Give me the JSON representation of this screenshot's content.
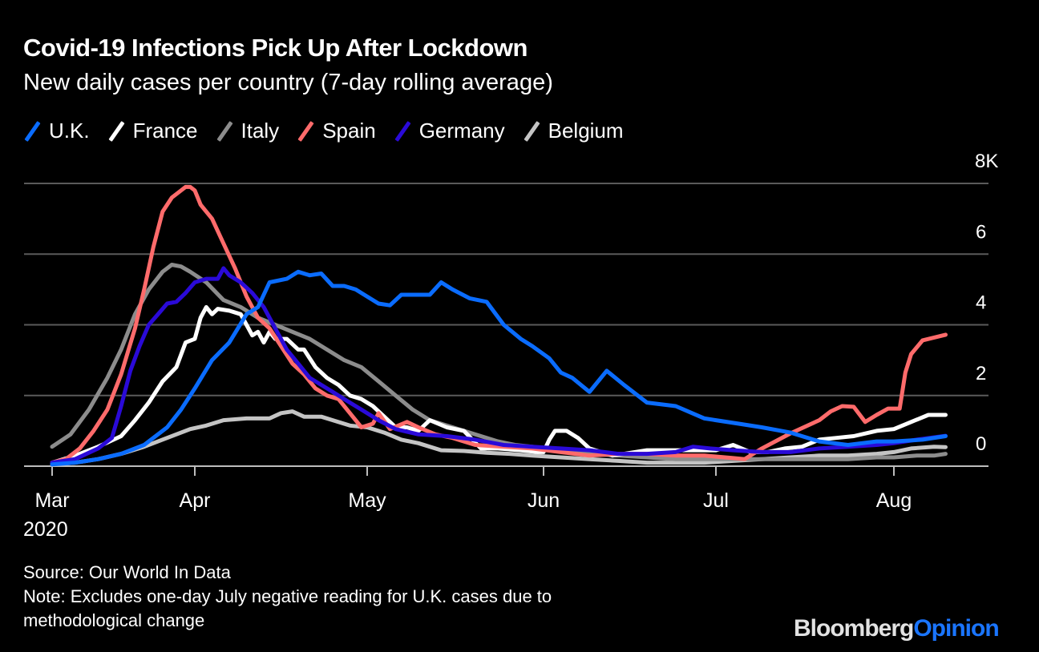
{
  "header": {
    "title": "Covid-19 Infections Pick Up After Lockdown",
    "subtitle": "New daily cases per country (7-day rolling average)"
  },
  "footer": {
    "source": "Source: Our World In Data",
    "note_line1": "Note: Excludes one-day July negative reading for U.K. cases due to",
    "note_line2": "methodological change"
  },
  "logo": {
    "brand": "Bloomberg",
    "section": "Opinion"
  },
  "chart_data": {
    "type": "line",
    "title": "Covid-19 Infections Pick Up After Lockdown",
    "subtitle": "New daily cases per country (7-day rolling average)",
    "xlabel": "",
    "ylabel": "",
    "x_unit": "days since 2020-03-01",
    "xlim": [
      0,
      162
    ],
    "ylim": [
      0,
      8
    ],
    "y_unit": "thousands",
    "y_ticks": [
      0,
      2,
      4,
      6,
      8
    ],
    "y_tick_labels": [
      "0",
      "2",
      "4",
      "6",
      "8K"
    ],
    "x_ticks": [
      0,
      31,
      61,
      92,
      122,
      153
    ],
    "x_tick_labels": [
      "Mar",
      "Apr",
      "May",
      "Jun",
      "Jul",
      "Aug"
    ],
    "x_year_label": "2020",
    "grid": true,
    "legend_position": "top-left",
    "series": [
      {
        "name": "U.K.",
        "color": "#0a6cff",
        "x": [
          0,
          5,
          10,
          15,
          20,
          25,
          28,
          31,
          34,
          37,
          40,
          42,
          44,
          47,
          49,
          51,
          53,
          55,
          57,
          59,
          61,
          63,
          65,
          67,
          69,
          72,
          74,
          76,
          79,
          82,
          85,
          88,
          90,
          93,
          95,
          97,
          100,
          103,
          106,
          110,
          115,
          120,
          122,
          126,
          130,
          135,
          140,
          145,
          150,
          153,
          158,
          162
        ],
        "y": [
          0.05,
          0.1,
          0.2,
          0.35,
          0.6,
          1.1,
          1.6,
          2.2,
          3.0,
          3.5,
          4.3,
          4.5,
          5.2,
          5.3,
          5.5,
          5.4,
          5.45,
          5.1,
          5.1,
          5.0,
          4.8,
          4.6,
          4.55,
          4.85,
          4.85,
          4.85,
          5.2,
          5.0,
          4.75,
          4.65,
          4.0,
          3.6,
          3.4,
          3.05,
          2.65,
          2.5,
          2.1,
          2.7,
          2.3,
          1.8,
          1.7,
          1.35,
          1.3,
          1.2,
          1.1,
          0.95,
          0.7,
          0.6,
          0.7,
          0.7,
          0.75,
          0.85
        ]
      },
      {
        "name": "France",
        "color": "#ffffff",
        "x": [
          0,
          5,
          10,
          15,
          18,
          21,
          24,
          27,
          29,
          31,
          32,
          33,
          34,
          35,
          37,
          39,
          40,
          41,
          42,
          43,
          44,
          45,
          47,
          49,
          50,
          52,
          54,
          56,
          58,
          60,
          62,
          64,
          66,
          68,
          70,
          72,
          75,
          78,
          81,
          84,
          88,
          91,
          92,
          93,
          94,
          96,
          98,
          100,
          104,
          110,
          115,
          120,
          122,
          125,
          128,
          131,
          134,
          137,
          140,
          143,
          146,
          150,
          153,
          156,
          159,
          162
        ],
        "y": [
          0.1,
          0.3,
          0.55,
          0.85,
          1.3,
          1.8,
          2.4,
          2.8,
          3.5,
          3.6,
          4.2,
          4.5,
          4.3,
          4.45,
          4.4,
          4.3,
          4.0,
          3.7,
          3.8,
          3.5,
          3.8,
          3.6,
          3.6,
          3.3,
          3.3,
          2.8,
          2.5,
          2.3,
          2.0,
          1.9,
          1.7,
          1.4,
          1.1,
          1.1,
          1.0,
          1.3,
          1.1,
          1.0,
          0.5,
          0.5,
          0.45,
          0.4,
          0.4,
          0.75,
          1.0,
          1.0,
          0.8,
          0.5,
          0.3,
          0.45,
          0.45,
          0.45,
          0.45,
          0.6,
          0.4,
          0.4,
          0.5,
          0.55,
          0.75,
          0.8,
          0.85,
          1.0,
          1.05,
          1.25,
          1.45,
          1.45
        ]
      },
      {
        "name": "Italy",
        "color": "#8c8c8c",
        "x": [
          0,
          4,
          8,
          12,
          15,
          18,
          21,
          24,
          26,
          28,
          30,
          33,
          36,
          39,
          42,
          45,
          48,
          51,
          54,
          57,
          60,
          63,
          66,
          69,
          72,
          75,
          78,
          81,
          84,
          87,
          90,
          95,
          100,
          105,
          110,
          115,
          120,
          125,
          130,
          135,
          140,
          145,
          150,
          153,
          157,
          160,
          162
        ],
        "y": [
          0.55,
          0.9,
          1.6,
          2.5,
          3.3,
          4.3,
          5.0,
          5.5,
          5.7,
          5.65,
          5.5,
          5.2,
          4.7,
          4.5,
          4.2,
          4.0,
          3.8,
          3.6,
          3.3,
          3.0,
          2.8,
          2.4,
          2.0,
          1.6,
          1.3,
          1.15,
          1.0,
          0.85,
          0.7,
          0.6,
          0.55,
          0.45,
          0.35,
          0.3,
          0.25,
          0.2,
          0.2,
          0.2,
          0.2,
          0.2,
          0.2,
          0.2,
          0.25,
          0.25,
          0.3,
          0.3,
          0.35
        ]
      },
      {
        "name": "Spain",
        "color": "#ff6b6b",
        "x": [
          0,
          3,
          6,
          9,
          12,
          15,
          18,
          20,
          22,
          24,
          26,
          28,
          29,
          30,
          31,
          32,
          34,
          36,
          38,
          40,
          42,
          44,
          46,
          48,
          50,
          52,
          54,
          56,
          58,
          60,
          62,
          63,
          65,
          68,
          70,
          73,
          76,
          80,
          85,
          90,
          95,
          100,
          105,
          110,
          115,
          120,
          125,
          127,
          130,
          135,
          140,
          142,
          144,
          146,
          148,
          150,
          152,
          153,
          154,
          155,
          156,
          158,
          162
        ],
        "y": [
          0.1,
          0.2,
          0.5,
          1.0,
          1.6,
          2.6,
          3.9,
          5.0,
          6.2,
          7.2,
          7.6,
          7.8,
          7.9,
          7.9,
          7.8,
          7.4,
          7.0,
          6.3,
          5.6,
          4.8,
          4.2,
          3.9,
          3.4,
          2.9,
          2.6,
          2.2,
          2.0,
          1.9,
          1.5,
          1.1,
          1.2,
          1.5,
          1.05,
          1.25,
          1.1,
          0.9,
          0.8,
          0.6,
          0.55,
          0.5,
          0.4,
          0.3,
          0.35,
          0.35,
          0.3,
          0.3,
          0.23,
          0.2,
          0.5,
          0.93,
          1.3,
          1.55,
          1.7,
          1.68,
          1.25,
          1.45,
          1.63,
          1.63,
          1.63,
          2.65,
          3.17,
          3.56,
          3.72
        ]
      },
      {
        "name": "Germany",
        "color": "#2a0ad8",
        "x": [
          0,
          5,
          10,
          13,
          15,
          17,
          19,
          21,
          23,
          25,
          27,
          29,
          31,
          33,
          35,
          36,
          37,
          39,
          41,
          43,
          45,
          47,
          49,
          51,
          53,
          55,
          57,
          60,
          63,
          66,
          70,
          75,
          80,
          85,
          90,
          95,
          100,
          105,
          110,
          115,
          118,
          121,
          125,
          130,
          135,
          140,
          145,
          150,
          153,
          157,
          162
        ],
        "y": [
          0.1,
          0.2,
          0.5,
          0.8,
          1.7,
          2.7,
          3.4,
          4.0,
          4.3,
          4.6,
          4.65,
          4.9,
          5.2,
          5.3,
          5.3,
          5.6,
          5.4,
          5.2,
          4.9,
          4.5,
          3.9,
          3.3,
          2.9,
          2.5,
          2.3,
          2.1,
          1.9,
          1.6,
          1.3,
          1.05,
          0.9,
          0.85,
          0.75,
          0.6,
          0.55,
          0.5,
          0.45,
          0.35,
          0.35,
          0.4,
          0.55,
          0.5,
          0.45,
          0.4,
          0.4,
          0.5,
          0.55,
          0.6,
          0.65,
          0.75,
          0.86
        ]
      },
      {
        "name": "Belgium",
        "color": "#c4c4c4",
        "x": [
          0,
          5,
          10,
          15,
          20,
          25,
          30,
          33,
          36,
          40,
          44,
          46,
          48,
          50,
          53,
          55,
          58,
          61,
          64,
          67,
          70,
          74,
          78,
          82,
          86,
          90,
          95,
          100,
          105,
          110,
          115,
          120,
          125,
          130,
          135,
          140,
          145,
          150,
          153,
          156,
          160,
          162
        ],
        "y": [
          0.05,
          0.1,
          0.2,
          0.35,
          0.55,
          0.8,
          1.05,
          1.15,
          1.3,
          1.35,
          1.35,
          1.5,
          1.55,
          1.4,
          1.4,
          1.3,
          1.15,
          1.1,
          0.95,
          0.75,
          0.65,
          0.45,
          0.43,
          0.38,
          0.35,
          0.3,
          0.25,
          0.2,
          0.15,
          0.1,
          0.1,
          0.1,
          0.15,
          0.2,
          0.25,
          0.3,
          0.3,
          0.35,
          0.4,
          0.5,
          0.55,
          0.54
        ]
      }
    ]
  }
}
